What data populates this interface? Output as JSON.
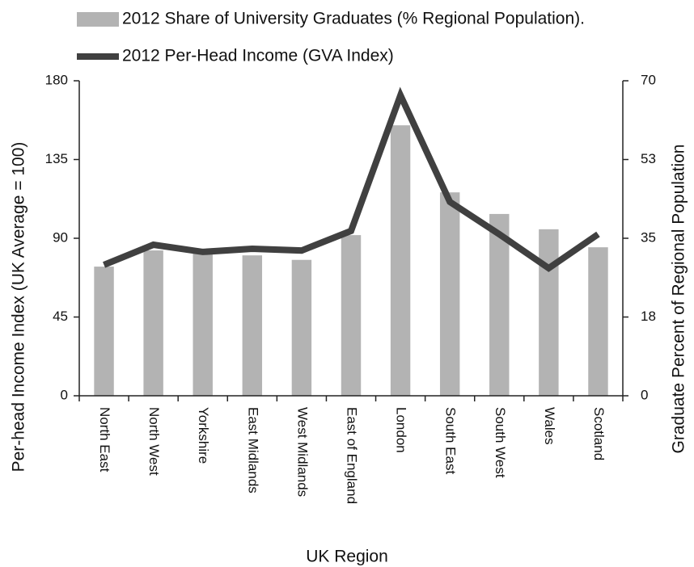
{
  "chart_data": {
    "type": "bar",
    "x_label": "UK Region",
    "y_label": "Per-head Income Index (UK Average = 100)",
    "y2_label": "Graduate Percent of Regional Population",
    "categories": [
      "North East",
      "North West",
      "Yorkshire",
      "East Midlands",
      "West Midlands",
      "East of England",
      "London",
      "South East",
      "South West",
      "Wales",
      "Scotland"
    ],
    "series": [
      {
        "name": "2012 Share of University Graduates (% Regional Population).",
        "type": "bar",
        "axis": "y2",
        "color": "#b3b3b3",
        "values": [
          28.7,
          32.3,
          31.8,
          31.2,
          30.2,
          35.7,
          60.1,
          45.2,
          40.4,
          37,
          33
        ]
      },
      {
        "name": "2012 Per-Head Income (GVA Index)",
        "type": "line",
        "axis": "y",
        "color": "#404040",
        "values": [
          74.8,
          86.3,
          82.2,
          84,
          83,
          94.2,
          171.7,
          110.8,
          92.3,
          72.9,
          92.3
        ]
      }
    ],
    "ylim": [
      0,
      180
    ],
    "yticks": [
      0,
      45,
      90,
      135,
      180
    ],
    "y2lim": [
      0,
      70
    ],
    "y2ticks": [
      0,
      {
        "value": 17.5,
        "label": "18"
      },
      35,
      {
        "value": 52.5,
        "label": "53"
      },
      70
    ],
    "legend": "top",
    "grid": false
  }
}
